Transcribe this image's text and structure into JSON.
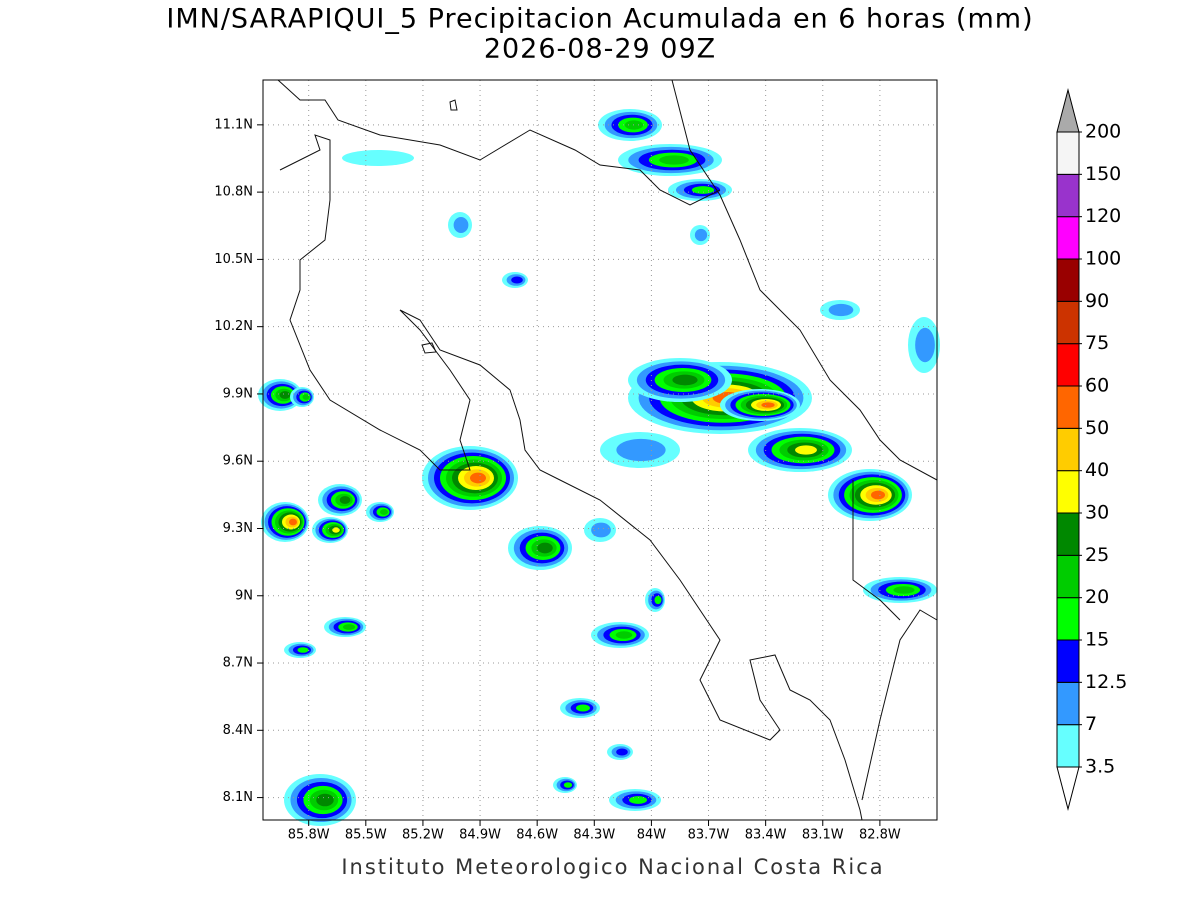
{
  "title": "IMN/SARAPIQUI_5 Precipitacion Acumulada en 6 horas (mm)",
  "subtitle": "2026-08-29 09Z",
  "map": {
    "xlim": [
      -86.04,
      -82.5
    ],
    "ylim": [
      8.0,
      11.3
    ],
    "xticks": [
      {
        "value": -85.8,
        "label": "85.8W"
      },
      {
        "value": -85.5,
        "label": "85.5W"
      },
      {
        "value": -85.2,
        "label": "85.2W"
      },
      {
        "value": -84.9,
        "label": "84.9W"
      },
      {
        "value": -84.6,
        "label": "84.6W"
      },
      {
        "value": -84.3,
        "label": "84.3W"
      },
      {
        "value": -84.0,
        "label": "84W"
      },
      {
        "value": -83.7,
        "label": "83.7W"
      },
      {
        "value": -83.4,
        "label": "83.4W"
      },
      {
        "value": -83.1,
        "label": "83.1W"
      },
      {
        "value": -82.8,
        "label": "82.8W"
      }
    ],
    "yticks": [
      {
        "value": 8.1,
        "label": "8.1N"
      },
      {
        "value": 8.4,
        "label": "8.4N"
      },
      {
        "value": 8.7,
        "label": "8.7N"
      },
      {
        "value": 9.0,
        "label": "9N"
      },
      {
        "value": 9.3,
        "label": "9.3N"
      },
      {
        "value": 9.6,
        "label": "9.6N"
      },
      {
        "value": 9.9,
        "label": "9.9N"
      },
      {
        "value": 10.2,
        "label": "10.2N"
      },
      {
        "value": 10.5,
        "label": "10.5N"
      },
      {
        "value": 10.8,
        "label": "10.8N"
      },
      {
        "value": 11.1,
        "label": "11.1N"
      }
    ],
    "grid": true
  },
  "colorbar": {
    "levels": [
      3.5,
      7,
      12.5,
      15,
      20,
      25,
      30,
      40,
      50,
      60,
      75,
      90,
      100,
      120,
      150,
      200
    ],
    "colors": [
      "#66ffff",
      "#3399ff",
      "#0000ff",
      "#00ff00",
      "#00cc00",
      "#008800",
      "#ffff00",
      "#ffcc00",
      "#ff6600",
      "#ff0000",
      "#cc3300",
      "#990000",
      "#ff00ff",
      "#9933cc",
      "#f5f5f5"
    ],
    "over_color": "#aaaaaa",
    "under_color": "#ffffff"
  },
  "footer": "Instituto Meteorologico Nacional Costa Rica"
}
